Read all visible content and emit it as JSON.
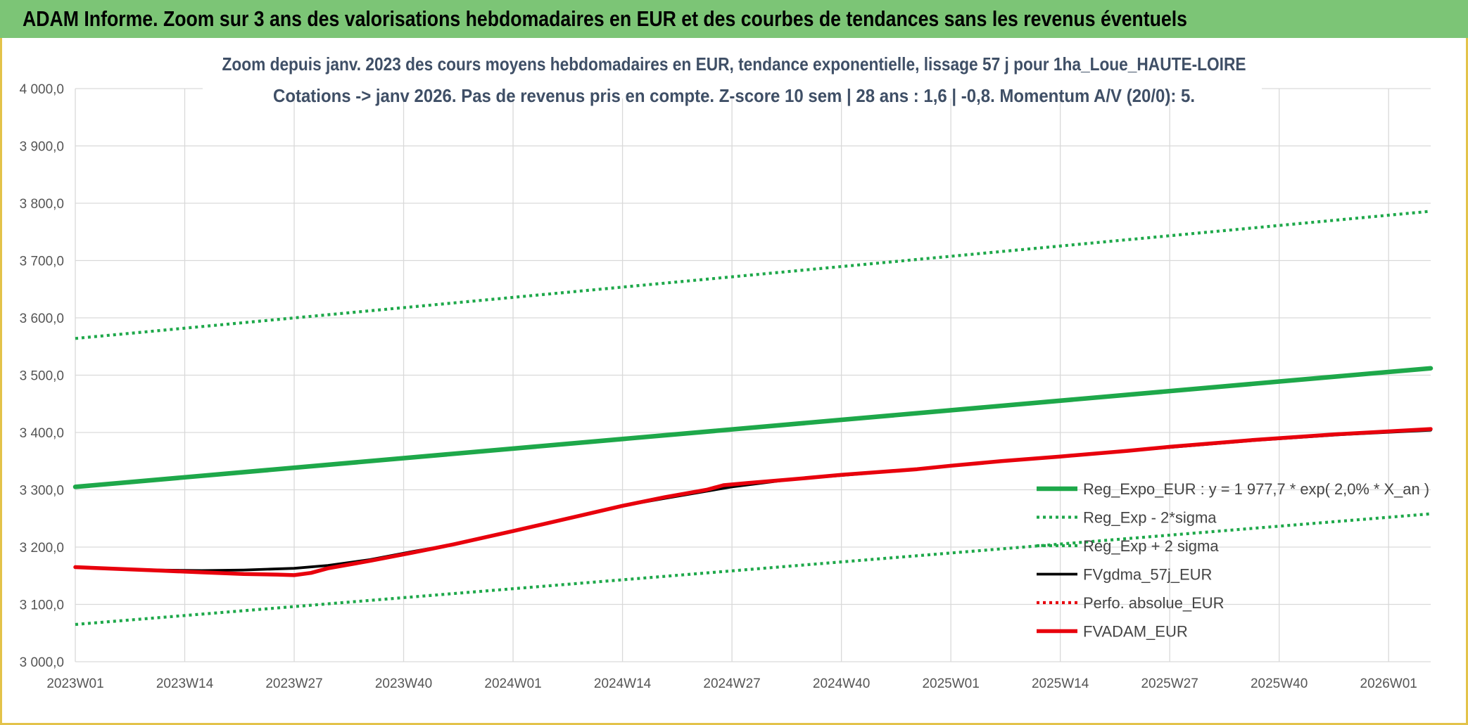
{
  "banner": {
    "title": "ADAM Informe. Zoom sur 3 ans des valorisations hebdomadaires en EUR et des courbes de tendances sans les revenus éventuels"
  },
  "colors": {
    "banner_bg": "#7cc576",
    "green": "#1ea84a",
    "black": "#000000",
    "red": "#e8000c"
  },
  "chart_data": {
    "type": "line",
    "title_lines": [
      "Zoom depuis janv. 2023 des cours moyens hebdomadaires en EUR, tendance exponentielle, lissage 57 j pour 1ha_Loue_HAUTE-LOIRE",
      "Cotations -> janv 2026. Pas de revenus pris en compte. Z-score 10 sem | 28 ans : 1,6 | -0,8. Momentum A/V (20/0): 5."
    ],
    "xlabel": "",
    "ylabel": "",
    "ylim": [
      3000,
      4000
    ],
    "yticks": [
      "4 000,0",
      "3 900,0",
      "3 800,0",
      "3 700,0",
      "3 600,0",
      "3 500,0",
      "3 400,0",
      "3 300,0",
      "3 200,0",
      "3 100,0",
      "3 000,0"
    ],
    "ytick_values": [
      4000,
      3900,
      3800,
      3700,
      3600,
      3500,
      3400,
      3300,
      3200,
      3100,
      3000
    ],
    "xlim": [
      0,
      161
    ],
    "xticks": [
      "2023W01",
      "2023W14",
      "2023W27",
      "2023W40",
      "2024W01",
      "2024W14",
      "2024W27",
      "2024W40",
      "2025W01",
      "2025W14",
      "2025W27",
      "2025W40",
      "2026W01"
    ],
    "xtick_positions": [
      0,
      13,
      26,
      39,
      52,
      65,
      78,
      91,
      104,
      117,
      130,
      143,
      156
    ],
    "series": [
      {
        "name": "Reg_Expo_EUR : y = 1 977,7 * exp( 2,0% *  X_an )",
        "style": "solid-thick",
        "color": "#1ea84a",
        "x": [
          0,
          161
        ],
        "values": [
          3305,
          3512
        ]
      },
      {
        "name": "Reg_Exp - 2*sigma",
        "style": "dotted",
        "color": "#1ea84a",
        "x": [
          0,
          161
        ],
        "values": [
          3065,
          3258
        ]
      },
      {
        "name": "Reg_Exp + 2 sigma",
        "style": "dotted",
        "color": "#1ea84a",
        "x": [
          0,
          161
        ],
        "values": [
          3564,
          3786
        ]
      },
      {
        "name": "FVgdma_57j_EUR",
        "style": "solid",
        "color": "#000000",
        "x": [
          0,
          5,
          10,
          15,
          20,
          26,
          30,
          35,
          40,
          45,
          52,
          60,
          65,
          70,
          78,
          85,
          91,
          100,
          104,
          110,
          117,
          125,
          130,
          140,
          150,
          161
        ],
        "values": [
          3165,
          3162,
          3160,
          3159,
          3160,
          3163,
          3168,
          3178,
          3192,
          3205,
          3228,
          3255,
          3272,
          3285,
          3305,
          3318,
          3325,
          3336,
          3342,
          3350,
          3358,
          3368,
          3374,
          3386,
          3396,
          3404
        ]
      },
      {
        "name": "Perfo. absolue_EUR",
        "style": "dotted",
        "color": "#e8000c",
        "x": [],
        "values": []
      },
      {
        "name": "FVADAM_EUR",
        "style": "solid-thick",
        "color": "#e8000c",
        "x": [
          0,
          5,
          10,
          15,
          20,
          24,
          26,
          28,
          30,
          35,
          40,
          45,
          52,
          60,
          65,
          70,
          75,
          77,
          80,
          85,
          91,
          100,
          104,
          110,
          117,
          125,
          130,
          140,
          150,
          161
        ],
        "values": [
          3165,
          3162,
          3159,
          3156,
          3153,
          3152,
          3151,
          3155,
          3163,
          3176,
          3190,
          3205,
          3228,
          3255,
          3272,
          3287,
          3300,
          3308,
          3312,
          3318,
          3326,
          3336,
          3342,
          3350,
          3358,
          3368,
          3375,
          3387,
          3397,
          3406
        ]
      }
    ],
    "legend_position": "bottom-right"
  }
}
